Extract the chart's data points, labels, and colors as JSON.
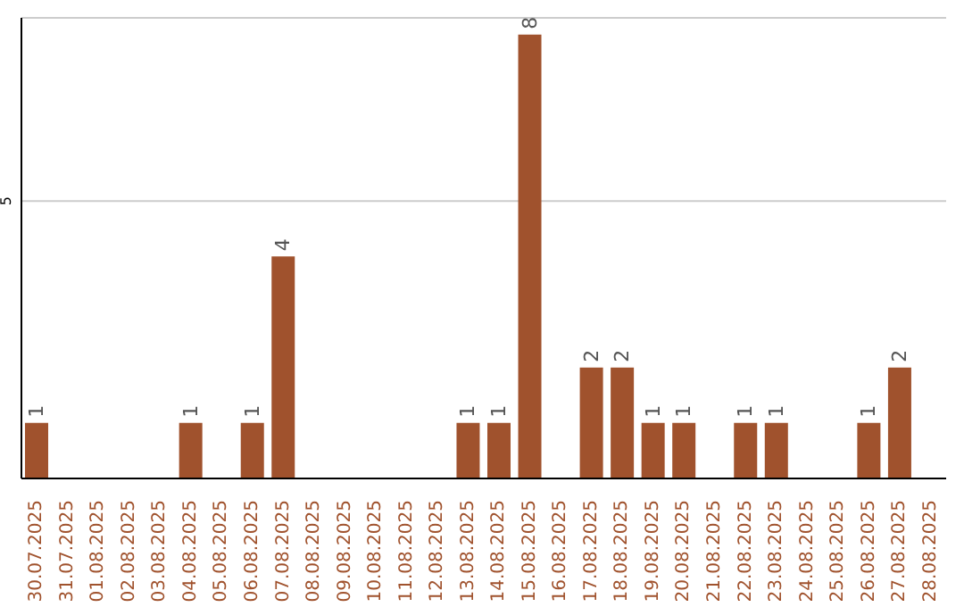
{
  "chart_data": {
    "type": "bar",
    "categories": [
      "30.07.2025",
      "31.07.2025",
      "01.08.2025",
      "02.08.2025",
      "03.08.2025",
      "04.08.2025",
      "05.08.2025",
      "06.08.2025",
      "07.08.2025",
      "08.08.2025",
      "09.08.2025",
      "10.08.2025",
      "11.08.2025",
      "12.08.2025",
      "13.08.2025",
      "14.08.2025",
      "15.08.2025",
      "16.08.2025",
      "17.08.2025",
      "18.08.2025",
      "19.08.2025",
      "20.08.2025",
      "21.08.2025",
      "22.08.2025",
      "23.08.2025",
      "24.08.2025",
      "25.08.2025",
      "26.08.2025",
      "27.08.2025",
      "28.08.2025"
    ],
    "values": [
      1,
      0,
      0,
      0,
      0,
      1,
      0,
      1,
      4,
      0,
      0,
      0,
      0,
      0,
      1,
      1,
      8,
      0,
      2,
      2,
      1,
      1,
      0,
      1,
      1,
      0,
      0,
      1,
      2,
      0
    ],
    "value_labels": [
      "1",
      null,
      null,
      null,
      null,
      "1",
      null,
      "1",
      "4",
      null,
      null,
      null,
      null,
      null,
      "1",
      "1",
      "8",
      null,
      "2",
      "2",
      "1",
      "1",
      null,
      "1",
      "1",
      null,
      null,
      "1",
      "2",
      null
    ],
    "color": "#a0522d",
    "ylim": [
      0,
      8.3
    ],
    "yticks": [
      5
    ],
    "grid": "y",
    "legend": false
  }
}
